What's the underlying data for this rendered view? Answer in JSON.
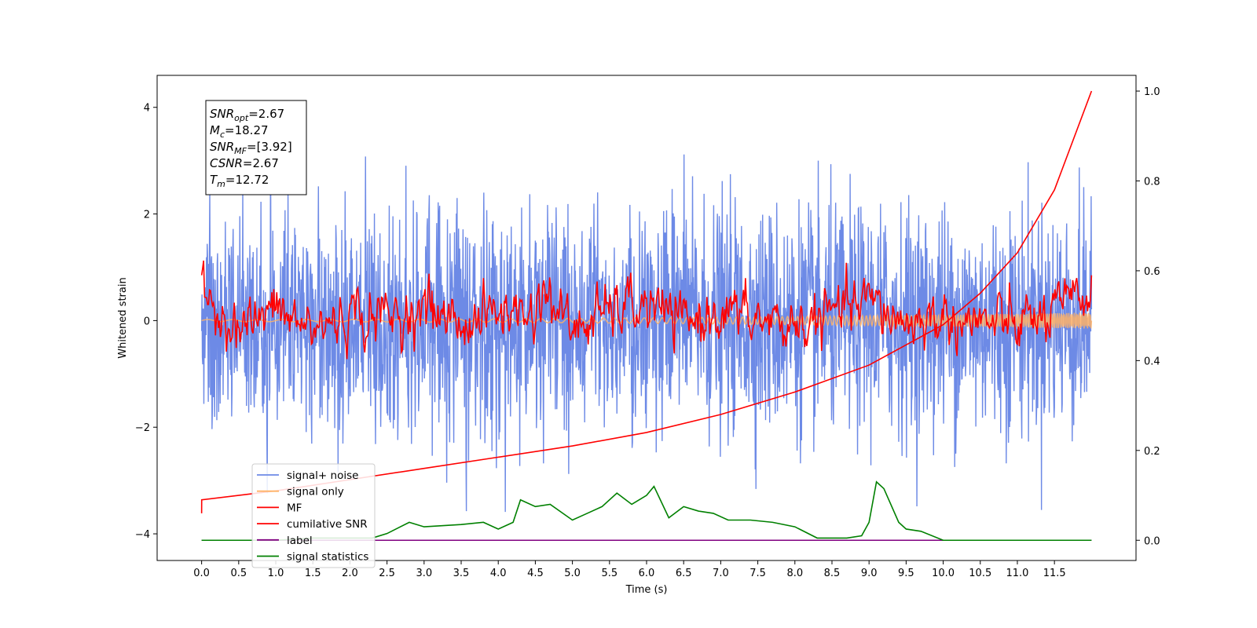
{
  "chart_data": {
    "type": "line",
    "xlabel": "Time (s)",
    "ylabel": "Whitened strain",
    "xlim": [
      -0.6,
      12.6
    ],
    "ylim": [
      -4.5,
      4.6
    ],
    "y2lim": [
      -0.045,
      1.035
    ],
    "x_ticks": [
      0.0,
      0.5,
      1.0,
      1.5,
      2.0,
      2.5,
      3.0,
      3.5,
      4.0,
      4.5,
      5.0,
      5.5,
      6.0,
      6.5,
      7.0,
      7.5,
      8.0,
      8.5,
      9.0,
      9.5,
      10.0,
      10.5,
      11.0,
      11.5
    ],
    "x_tick_labels": [
      "0.0",
      "0.5",
      "1.0",
      "1.5",
      "2.0",
      "2.5",
      "3.0",
      "3.5",
      "4.0",
      "4.5",
      "5.0",
      "5.5",
      "6.0",
      "6.5",
      "7.0",
      "7.5",
      "8.0",
      "8.5",
      "9.0",
      "9.5",
      "10.0",
      "10.5",
      "11.0",
      "11.5"
    ],
    "y_ticks": [
      -4,
      -2,
      0,
      2,
      4
    ],
    "y_tick_labels": [
      "−4",
      "−2",
      "0",
      "2",
      "4"
    ],
    "y2_ticks": [
      0.0,
      0.2,
      0.4,
      0.6,
      0.8,
      1.0
    ],
    "y2_tick_labels": [
      "0.0",
      "0.2",
      "0.4",
      "0.6",
      "0.8",
      "1.0"
    ],
    "grid": false,
    "legend_position": "lower-left",
    "series": [
      {
        "name": "signal+ noise",
        "color": "#6d8ae6",
        "axis": "left",
        "note": "dense noise trace, approx. range -3.5 to 4.2",
        "x": [
          0.0,
          12.0
        ],
        "y_range": [
          -3.6,
          4.15
        ]
      },
      {
        "name": "signal only",
        "color": "#ffb266",
        "axis": "left",
        "x": [
          0.0,
          12.0
        ],
        "amplitude_start": 0.02,
        "amplitude_end": 0.15
      },
      {
        "name": "MF",
        "color": "#ff0000",
        "axis": "left",
        "x": [
          0.0,
          0.5,
          1.0,
          1.5,
          2.0,
          2.5,
          3.0,
          3.5,
          4.0,
          4.5,
          4.6,
          5.0,
          5.5,
          6.0,
          6.5,
          7.0,
          7.5,
          8.0,
          8.5,
          9.0,
          9.5,
          10.0,
          10.5,
          11.0,
          11.5,
          12.0
        ],
        "y": [
          0.85,
          -0.2,
          0.3,
          -0.3,
          0.2,
          0.1,
          0.4,
          -0.1,
          0.3,
          0.2,
          1.0,
          -0.3,
          0.3,
          0.5,
          -0.1,
          0.3,
          0.0,
          -0.2,
          0.2,
          0.6,
          -0.1,
          0.1,
          -0.1,
          -0.1,
          0.2,
          0.85
        ]
      },
      {
        "name": "cumilative SNR",
        "color": "#ff0000",
        "axis": "right",
        "x": [
          0.0,
          0.001,
          1.0,
          2.0,
          3.0,
          4.0,
          5.0,
          6.0,
          7.0,
          8.0,
          9.0,
          10.0,
          10.5,
          11.0,
          11.5,
          12.0
        ],
        "y": [
          0.06,
          0.09,
          0.11,
          0.135,
          0.16,
          0.185,
          0.21,
          0.24,
          0.28,
          0.33,
          0.39,
          0.48,
          0.55,
          0.64,
          0.78,
          1.0
        ]
      },
      {
        "name": "label",
        "color": "#800080",
        "axis": "right",
        "x": [
          0.0,
          12.0
        ],
        "y": [
          0.0,
          0.0
        ]
      },
      {
        "name": "signal statistics",
        "color": "#008000",
        "axis": "right",
        "x": [
          0.0,
          0.5,
          1.0,
          1.5,
          2.0,
          2.3,
          2.5,
          2.8,
          3.0,
          3.5,
          3.8,
          4.0,
          4.2,
          4.3,
          4.5,
          4.7,
          5.0,
          5.2,
          5.4,
          5.6,
          5.8,
          6.0,
          6.1,
          6.3,
          6.5,
          6.7,
          6.9,
          7.1,
          7.4,
          7.7,
          8.0,
          8.3,
          8.7,
          8.9,
          9.0,
          9.1,
          9.2,
          9.4,
          9.5,
          9.7,
          10.0,
          10.5,
          11.0,
          11.5,
          12.0
        ],
        "y": [
          0.0,
          0.0,
          0.0,
          0.005,
          0.005,
          0.005,
          0.015,
          0.04,
          0.03,
          0.035,
          0.04,
          0.025,
          0.04,
          0.09,
          0.075,
          0.08,
          0.045,
          0.06,
          0.075,
          0.105,
          0.08,
          0.1,
          0.12,
          0.05,
          0.075,
          0.065,
          0.06,
          0.045,
          0.045,
          0.04,
          0.03,
          0.005,
          0.005,
          0.01,
          0.04,
          0.13,
          0.115,
          0.04,
          0.025,
          0.02,
          0.0,
          0.0,
          0.0,
          0.0,
          0.0
        ]
      }
    ],
    "annotation": [
      {
        "base": "SNR",
        "sub": "opt",
        "value": "=2.67"
      },
      {
        "base": "M",
        "sub": "c",
        "value": "=18.27"
      },
      {
        "base": "SNR",
        "sub": "MF",
        "value": "=[3.92]"
      },
      {
        "base": "CSNR",
        "sub": "",
        "value": "=2.67"
      },
      {
        "base": "T",
        "sub": "m",
        "value": "=12.72"
      }
    ]
  }
}
